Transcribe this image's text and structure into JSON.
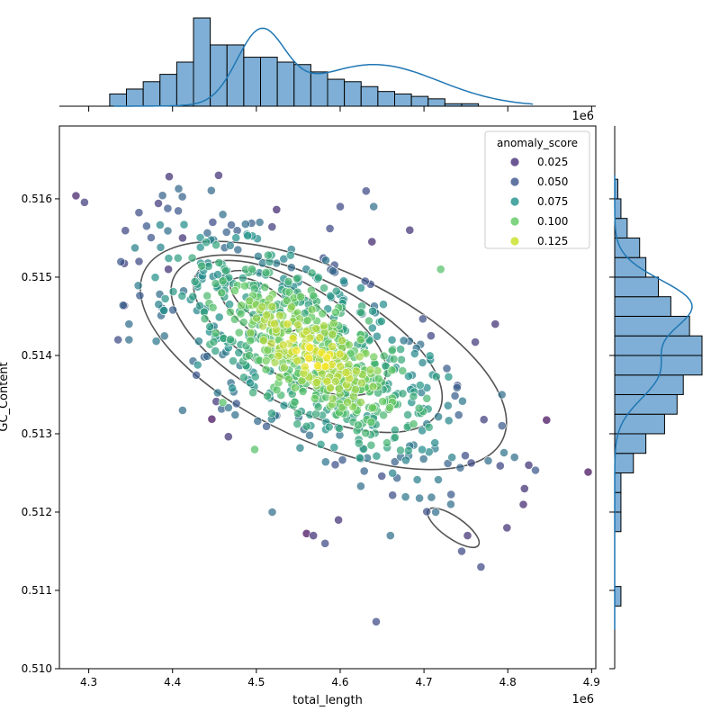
{
  "chart_data": {
    "type": "scatter",
    "kind": "joint plot (scatter with KDE contours and marginal histograms)",
    "xlabel": "total_length",
    "ylabel": "GC_Content",
    "x_scale_label": "1e6",
    "marginal_x_scale_label": "1e6",
    "xlim": [
      4.265,
      4.905
    ],
    "ylim": [
      0.51,
      0.51693
    ],
    "x_ticks": [
      4.3,
      4.4,
      4.5,
      4.6,
      4.7,
      4.8,
      4.9
    ],
    "x_tick_labels": [
      "4.3",
      "4.4",
      "4.5",
      "4.6",
      "4.7",
      "4.8",
      "4.9"
    ],
    "y_ticks": [
      0.51,
      0.511,
      0.512,
      0.513,
      0.514,
      0.515,
      0.516
    ],
    "y_tick_labels": [
      "0.510",
      "0.511",
      "0.512",
      "0.513",
      "0.514",
      "0.515",
      "0.516"
    ],
    "legend": {
      "title": "anomaly_score",
      "placement": "top-right",
      "entries": [
        {
          "label": "0.025",
          "color": "#472d7b"
        },
        {
          "label": "0.050",
          "color": "#3b528b"
        },
        {
          "label": "0.075",
          "color": "#21918c"
        },
        {
          "label": "0.100",
          "color": "#5ec962"
        },
        {
          "label": "0.125",
          "color": "#c8e020"
        }
      ]
    },
    "colormap": "viridis",
    "contour_color": "#555555",
    "histogram_color": "#7fafd6",
    "kde_line_color": "#1f77b4",
    "grid": false,
    "points": [
      [
        4.335,
        0.5142,
        0.03
      ],
      [
        4.348,
        0.5144,
        0.05
      ],
      [
        4.348,
        0.5142,
        0.05
      ],
      [
        4.455,
        0.5163,
        0.02
      ],
      [
        4.643,
        0.5106,
        0.03
      ],
      [
        4.631,
        0.5161,
        0.03
      ],
      [
        4.768,
        0.5113,
        0.03
      ],
      [
        4.825,
        0.5126,
        0.02
      ],
      [
        4.793,
        0.5135,
        0.05
      ],
      [
        4.498,
        0.5128,
        0.1
      ],
      [
        4.519,
        0.512,
        0.05
      ],
      [
        4.598,
        0.5119,
        0.02
      ],
      [
        4.582,
        0.5116,
        0.03
      ],
      [
        4.568,
        0.5117,
        0.02
      ],
      [
        4.66,
        0.5117,
        0.05
      ],
      [
        4.799,
        0.5118,
        0.02
      ],
      [
        4.82,
        0.5123,
        0.02
      ],
      [
        4.808,
        0.5127,
        0.05
      ],
      [
        4.745,
        0.5115,
        0.03
      ],
      [
        4.752,
        0.5117,
        0.02
      ],
      [
        4.732,
        0.5121,
        0.05
      ],
      [
        4.714,
        0.512,
        0.05
      ],
      [
        4.683,
        0.5156,
        0.02
      ],
      [
        4.72,
        0.5151,
        0.1
      ],
      [
        4.785,
        0.5144,
        0.02
      ],
      [
        4.64,
        0.5159,
        0.05
      ],
      [
        4.6,
        0.5159,
        0.03
      ],
      [
        4.504,
        0.5157,
        0.05
      ],
      [
        4.46,
        0.5158,
        0.05
      ],
      [
        4.412,
        0.5155,
        0.02
      ],
      [
        4.395,
        0.5151,
        0.02
      ],
      [
        4.388,
        0.5146,
        0.05
      ],
      [
        4.412,
        0.5133,
        0.05
      ],
      [
        4.46,
        0.5134,
        0.1
      ]
    ],
    "x_marginal_hist": [
      0.05,
      0.07,
      0.1,
      0.13,
      0.18,
      0.36,
      0.25,
      0.25,
      0.2,
      0.2,
      0.18,
      0.17,
      0.14,
      0.11,
      0.1,
      0.08,
      0.06,
      0.05,
      0.04,
      0.03,
      0.01,
      0.01
    ],
    "y_marginal_hist": [
      0.01,
      0.0,
      0.0,
      0.0,
      0.01,
      0.01,
      0.01,
      0.03,
      0.05,
      0.08,
      0.1,
      0.11,
      0.14,
      0.14,
      0.12,
      0.09,
      0.07,
      0.05,
      0.04,
      0.02,
      0.01,
      0.005
    ]
  }
}
